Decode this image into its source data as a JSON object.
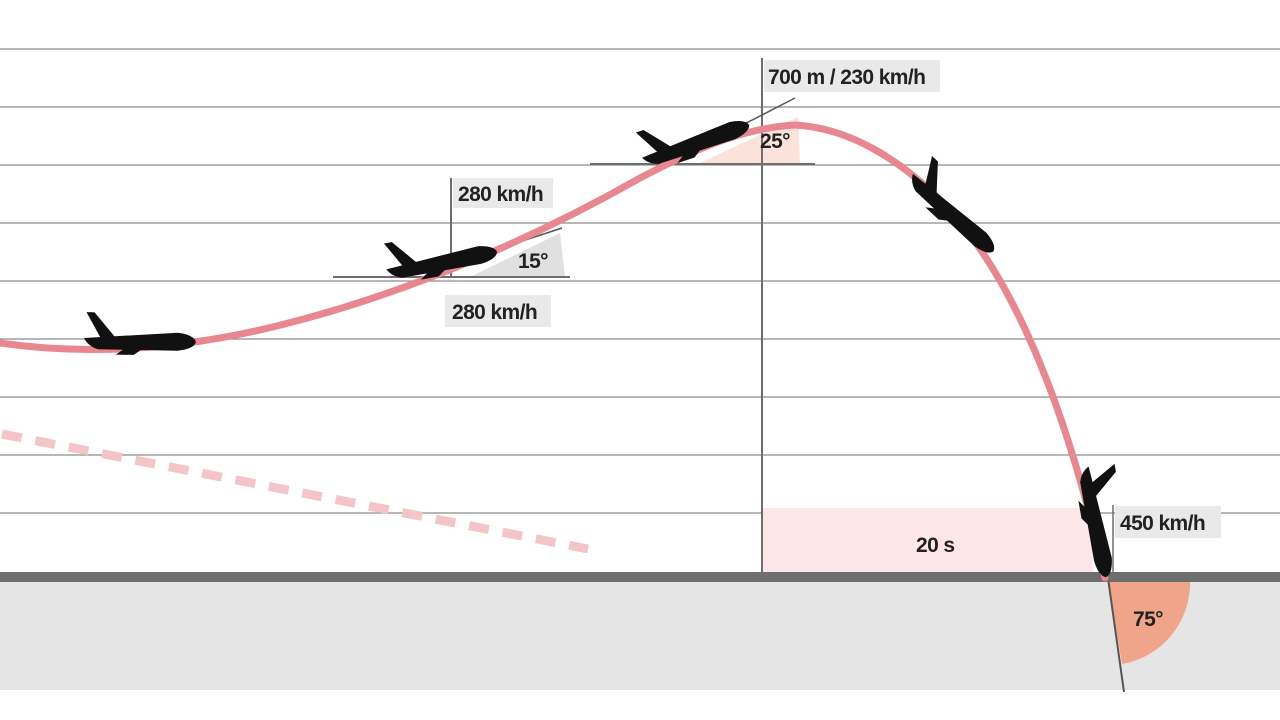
{
  "labels": {
    "apex": "700 m / 230 km/h",
    "apex_angle": "25°",
    "climb_speed_top": "280 km/h",
    "climb_angle": "15°",
    "climb_speed_bottom": "280 km/h",
    "duration": "20 s",
    "impact_speed": "450 km/h",
    "impact_angle": "75°"
  },
  "colors": {
    "trajectory": "#e8878f",
    "planned_path": "#f3c4c8",
    "angle_wedge_light": "#fbe3dc",
    "angle_wedge_impact": "#f0a58a",
    "duration_band": "#fce6e8",
    "ground": "#e5e5e5",
    "ground_line": "#6e6e6e",
    "grid": "#8c8c8c",
    "label_bg": "#e9e9e9",
    "aircraft": "#111111"
  },
  "icons": [
    "aircraft-icon"
  ]
}
